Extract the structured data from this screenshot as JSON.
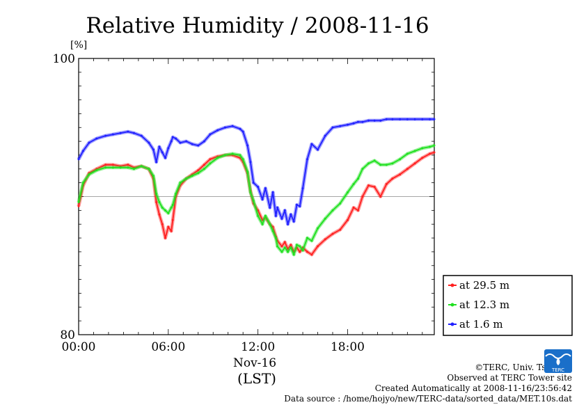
{
  "chart_data": {
    "type": "line",
    "title": "Relative Humidity / 2008-11-16",
    "ylabel_unit": "[%]",
    "ylim": [
      80,
      100
    ],
    "y_ticks": [
      "80",
      "100"
    ],
    "xlim": [
      0,
      23.8
    ],
    "x_ticks": [
      {
        "value": 0,
        "label": "00:00"
      },
      {
        "value": 6,
        "label": "06:00"
      },
      {
        "value": 12,
        "label": "12:00"
      },
      {
        "value": 18,
        "label": "18:00"
      }
    ],
    "x_date_label": "Nov-16",
    "x_zone_label": "(LST)",
    "reference_line": 90,
    "legend_position": "lower-right outside",
    "series": [
      {
        "name": "at 29.5 m",
        "color": "#ff2020",
        "points": [
          [
            0,
            89.3
          ],
          [
            0.3,
            90.8
          ],
          [
            0.7,
            91.7
          ],
          [
            1.2,
            92.0
          ],
          [
            1.8,
            92.3
          ],
          [
            2.3,
            92.3
          ],
          [
            2.8,
            92.2
          ],
          [
            3.3,
            92.3
          ],
          [
            3.7,
            92.1
          ],
          [
            4.2,
            92.2
          ],
          [
            4.7,
            92.0
          ],
          [
            5.0,
            91.3
          ],
          [
            5.2,
            89.6
          ],
          [
            5.4,
            88.7
          ],
          [
            5.6,
            88.0
          ],
          [
            5.8,
            87.0
          ],
          [
            6.0,
            87.8
          ],
          [
            6.2,
            87.5
          ],
          [
            6.3,
            88.3
          ],
          [
            6.5,
            90.0
          ],
          [
            6.8,
            90.8
          ],
          [
            7.2,
            91.3
          ],
          [
            7.6,
            91.6
          ],
          [
            8.0,
            91.9
          ],
          [
            8.4,
            92.3
          ],
          [
            8.8,
            92.7
          ],
          [
            9.3,
            92.9
          ],
          [
            9.8,
            93.0
          ],
          [
            10.3,
            93.0
          ],
          [
            10.8,
            92.8
          ],
          [
            11.0,
            92.5
          ],
          [
            11.3,
            91.7
          ],
          [
            11.5,
            90.4
          ],
          [
            11.7,
            89.5
          ],
          [
            12.0,
            89.0
          ],
          [
            12.3,
            88.3
          ],
          [
            12.5,
            88.5
          ],
          [
            12.8,
            88.0
          ],
          [
            13.0,
            87.8
          ],
          [
            13.2,
            87.1
          ],
          [
            13.3,
            86.8
          ],
          [
            13.6,
            86.4
          ],
          [
            13.8,
            86.7
          ],
          [
            14.0,
            86.2
          ],
          [
            14.2,
            86.5
          ],
          [
            14.4,
            86.0
          ],
          [
            14.6,
            86.3
          ],
          [
            14.8,
            86.0
          ],
          [
            15.0,
            86.3
          ],
          [
            15.3,
            86.0
          ],
          [
            15.6,
            85.8
          ],
          [
            16.0,
            86.4
          ],
          [
            16.5,
            86.9
          ],
          [
            17.0,
            87.3
          ],
          [
            17.5,
            87.6
          ],
          [
            18.0,
            88.3
          ],
          [
            18.4,
            89.2
          ],
          [
            18.7,
            89.0
          ],
          [
            19.0,
            90.0
          ],
          [
            19.4,
            90.8
          ],
          [
            19.8,
            90.7
          ],
          [
            20.2,
            90.0
          ],
          [
            20.6,
            90.9
          ],
          [
            21.0,
            91.3
          ],
          [
            21.5,
            91.6
          ],
          [
            22.0,
            92.0
          ],
          [
            22.5,
            92.4
          ],
          [
            23.0,
            92.8
          ],
          [
            23.5,
            93.1
          ],
          [
            23.8,
            93.2
          ]
        ]
      },
      {
        "name": "at 12.3 m",
        "color": "#20e020",
        "points": [
          [
            0,
            89.6
          ],
          [
            0.3,
            91.0
          ],
          [
            0.7,
            91.6
          ],
          [
            1.2,
            91.9
          ],
          [
            1.8,
            92.1
          ],
          [
            2.3,
            92.1
          ],
          [
            2.8,
            92.1
          ],
          [
            3.3,
            92.1
          ],
          [
            3.7,
            92.0
          ],
          [
            4.2,
            92.2
          ],
          [
            4.7,
            92.0
          ],
          [
            5.0,
            91.5
          ],
          [
            5.2,
            90.2
          ],
          [
            5.4,
            89.6
          ],
          [
            5.6,
            89.2
          ],
          [
            5.8,
            89.0
          ],
          [
            6.0,
            88.8
          ],
          [
            6.2,
            89.2
          ],
          [
            6.3,
            89.4
          ],
          [
            6.5,
            90.2
          ],
          [
            6.8,
            91.0
          ],
          [
            7.2,
            91.3
          ],
          [
            7.6,
            91.5
          ],
          [
            8.0,
            91.7
          ],
          [
            8.4,
            92.0
          ],
          [
            8.8,
            92.4
          ],
          [
            9.3,
            92.8
          ],
          [
            9.8,
            93.0
          ],
          [
            10.3,
            93.1
          ],
          [
            10.8,
            93.0
          ],
          [
            11.0,
            92.7
          ],
          [
            11.3,
            91.8
          ],
          [
            11.5,
            90.3
          ],
          [
            11.7,
            89.7
          ],
          [
            12.0,
            88.6
          ],
          [
            12.3,
            88.0
          ],
          [
            12.5,
            88.6
          ],
          [
            12.8,
            88.0
          ],
          [
            13.0,
            87.5
          ],
          [
            13.2,
            87.0
          ],
          [
            13.3,
            86.4
          ],
          [
            13.6,
            86.0
          ],
          [
            13.8,
            86.3
          ],
          [
            14.0,
            86.0
          ],
          [
            14.2,
            86.3
          ],
          [
            14.4,
            85.8
          ],
          [
            14.6,
            86.5
          ],
          [
            14.8,
            86.4
          ],
          [
            15.0,
            86.1
          ],
          [
            15.3,
            87.0
          ],
          [
            15.6,
            86.8
          ],
          [
            16.0,
            87.7
          ],
          [
            16.5,
            88.4
          ],
          [
            17.0,
            89.0
          ],
          [
            17.5,
            89.5
          ],
          [
            18.0,
            90.3
          ],
          [
            18.4,
            90.9
          ],
          [
            18.7,
            91.3
          ],
          [
            19.0,
            92.0
          ],
          [
            19.4,
            92.4
          ],
          [
            19.8,
            92.6
          ],
          [
            20.2,
            92.3
          ],
          [
            20.6,
            92.3
          ],
          [
            21.0,
            92.4
          ],
          [
            21.5,
            92.7
          ],
          [
            22.0,
            93.1
          ],
          [
            22.5,
            93.3
          ],
          [
            23.0,
            93.5
          ],
          [
            23.5,
            93.6
          ],
          [
            23.8,
            93.7
          ]
        ]
      },
      {
        "name": "at 1.6 m",
        "color": "#2020ff",
        "points": [
          [
            0,
            92.7
          ],
          [
            0.3,
            93.3
          ],
          [
            0.7,
            93.9
          ],
          [
            1.2,
            94.2
          ],
          [
            1.8,
            94.4
          ],
          [
            2.3,
            94.5
          ],
          [
            2.8,
            94.6
          ],
          [
            3.3,
            94.7
          ],
          [
            3.7,
            94.6
          ],
          [
            4.2,
            94.4
          ],
          [
            4.7,
            93.9
          ],
          [
            5.0,
            93.4
          ],
          [
            5.2,
            92.5
          ],
          [
            5.4,
            93.6
          ],
          [
            5.6,
            93.2
          ],
          [
            5.8,
            92.8
          ],
          [
            6.0,
            93.5
          ],
          [
            6.2,
            94.0
          ],
          [
            6.3,
            94.3
          ],
          [
            6.5,
            94.2
          ],
          [
            6.8,
            93.9
          ],
          [
            7.2,
            94.0
          ],
          [
            7.6,
            93.8
          ],
          [
            8.0,
            93.7
          ],
          [
            8.4,
            94.0
          ],
          [
            8.8,
            94.5
          ],
          [
            9.3,
            94.8
          ],
          [
            9.8,
            95.0
          ],
          [
            10.3,
            95.1
          ],
          [
            10.8,
            94.9
          ],
          [
            11.0,
            94.7
          ],
          [
            11.3,
            93.7
          ],
          [
            11.5,
            92.5
          ],
          [
            11.7,
            91.0
          ],
          [
            12.0,
            90.7
          ],
          [
            12.3,
            89.8
          ],
          [
            12.5,
            90.6
          ],
          [
            12.8,
            89.2
          ],
          [
            13.0,
            90.3
          ],
          [
            13.2,
            88.6
          ],
          [
            13.3,
            89.2
          ],
          [
            13.6,
            88.4
          ],
          [
            13.8,
            89.0
          ],
          [
            14.0,
            88.0
          ],
          [
            14.2,
            88.7
          ],
          [
            14.4,
            88.2
          ],
          [
            14.6,
            89.4
          ],
          [
            14.8,
            89.3
          ],
          [
            15.0,
            90.6
          ],
          [
            15.3,
            92.7
          ],
          [
            15.6,
            93.8
          ],
          [
            16.0,
            93.4
          ],
          [
            16.5,
            94.4
          ],
          [
            17.0,
            95.0
          ],
          [
            17.5,
            95.1
          ],
          [
            18.0,
            95.2
          ],
          [
            18.4,
            95.3
          ],
          [
            18.7,
            95.4
          ],
          [
            19.0,
            95.4
          ],
          [
            19.4,
            95.5
          ],
          [
            19.8,
            95.5
          ],
          [
            20.2,
            95.5
          ],
          [
            20.6,
            95.6
          ],
          [
            21.0,
            95.6
          ],
          [
            21.5,
            95.6
          ],
          [
            22.0,
            95.6
          ],
          [
            22.5,
            95.6
          ],
          [
            23.0,
            95.6
          ],
          [
            23.5,
            95.6
          ],
          [
            23.8,
            95.6
          ]
        ]
      }
    ]
  },
  "footer": {
    "copyright": "©TERC, Univ. Tsukuba",
    "site": "Observed at TERC Tower site",
    "created": "Created Automatically at 2008-11-16/23:56:42",
    "source": "Data source : /home/hojyo/new/TERC-data/sorted_data/MET.10s.dat"
  },
  "logo_text": "TERC"
}
